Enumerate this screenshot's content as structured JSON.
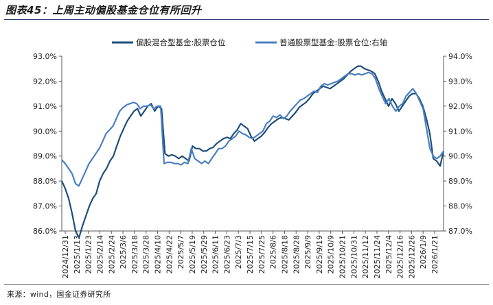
{
  "header": {
    "title": "图表45：上周主动偏股基金仓位有所回升"
  },
  "footer": {
    "source": "来源：wind，国金证券研究所"
  },
  "chart_data": {
    "type": "line",
    "left_axis": {
      "ylim": [
        86.0,
        93.0
      ],
      "ticks": [
        "86.0%",
        "87.0%",
        "88.0%",
        "89.0%",
        "90.0%",
        "91.0%",
        "92.0%",
        "93.0%"
      ]
    },
    "right_axis": {
      "ylim": [
        87.0,
        94.0
      ],
      "ticks": [
        "87.0%",
        "88.0%",
        "89.0%",
        "90.0%",
        "91.0%",
        "92.0%",
        "93.0%",
        "94.0%"
      ]
    },
    "x_ticks": [
      "2024/12/31",
      "2025/1/13",
      "2025/1/23",
      "2025/2/14",
      "2025/2/24",
      "2025/3/6",
      "2025/3/18",
      "2025/3/28",
      "2025/4/10",
      "2025/4/22",
      "2025/5/7",
      "2025/5/19",
      "2025/5/29",
      "2025/6/11",
      "2025/6/23",
      "2025/7/3",
      "2025/7/15",
      "2025/7/25",
      "2025/8/6",
      "2025/8/18",
      "2025/8/28",
      "2025/9/9",
      "2025/9/19",
      "2025/10/9",
      "2025/10/21",
      "2025/10/31",
      "2025/11/12",
      "2025/11/24",
      "2025/12/4",
      "2025/12/16",
      "2025/12/26",
      "2026/1/9",
      "2026/1/21"
    ],
    "series": [
      {
        "name": "偏股混合型基金:股票仓位",
        "axis": "left",
        "color": "#1d4e7a",
        "values": [
          88.0,
          87.7,
          87.3,
          86.7,
          86.0,
          85.6,
          86.2,
          86.6,
          87.0,
          87.3,
          87.5,
          88.0,
          88.3,
          88.5,
          88.8,
          89.0,
          89.4,
          89.8,
          90.1,
          90.4,
          90.6,
          90.8,
          90.9,
          90.6,
          90.8,
          91.0,
          91.1,
          90.8,
          91.0,
          90.9,
          89.1,
          89.0,
          89.05,
          89.0,
          88.9,
          89.0,
          88.9,
          88.8,
          89.4,
          89.3,
          89.3,
          89.2,
          89.2,
          89.3,
          89.35,
          89.5,
          89.6,
          89.7,
          89.75,
          89.7,
          89.9,
          90.05,
          90.3,
          90.2,
          90.1,
          89.8,
          89.6,
          89.7,
          89.8,
          89.95,
          90.15,
          90.3,
          90.4,
          90.5,
          90.55,
          90.5,
          90.45,
          90.6,
          90.75,
          90.95,
          91.05,
          91.15,
          91.3,
          91.5,
          91.6,
          91.7,
          91.8,
          91.75,
          91.7,
          91.8,
          91.9,
          92.0,
          92.1,
          92.25,
          92.4,
          92.5,
          92.6,
          92.6,
          92.5,
          92.45,
          92.4,
          92.3,
          92.0,
          91.6,
          91.3,
          91.0,
          91.3,
          91.1,
          90.8,
          91.0,
          91.2,
          91.4,
          91.5,
          91.5,
          91.3,
          91.0,
          90.5,
          89.9,
          88.9,
          88.8,
          88.6,
          89.2
        ]
      },
      {
        "name": "普通股票型基金:股票仓位:右轴",
        "axis": "right",
        "color": "#4a7fc1",
        "values": [
          89.85,
          89.7,
          89.5,
          89.3,
          88.9,
          88.8,
          89.1,
          89.4,
          89.7,
          89.9,
          90.1,
          90.3,
          90.6,
          90.9,
          91.05,
          91.2,
          91.5,
          91.8,
          91.95,
          92.05,
          92.1,
          92.15,
          92.1,
          91.9,
          92.0,
          92.0,
          92.05,
          91.9,
          92.0,
          92.0,
          89.7,
          89.75,
          89.75,
          89.7,
          89.7,
          89.65,
          89.75,
          89.7,
          90.3,
          89.9,
          89.8,
          89.7,
          89.8,
          89.7,
          89.9,
          90.1,
          90.3,
          90.3,
          90.4,
          90.6,
          90.7,
          90.8,
          91.0,
          90.9,
          90.85,
          90.75,
          90.7,
          90.8,
          90.9,
          91.0,
          91.3,
          91.4,
          91.6,
          91.55,
          91.65,
          91.5,
          91.6,
          91.8,
          91.95,
          92.1,
          92.25,
          92.3,
          92.4,
          92.5,
          92.6,
          92.55,
          92.8,
          92.9,
          92.85,
          92.9,
          92.95,
          93.0,
          93.1,
          93.2,
          93.3,
          93.3,
          93.25,
          93.3,
          93.25,
          93.3,
          93.35,
          93.3,
          93.1,
          92.7,
          92.4,
          92.1,
          92.3,
          92.0,
          91.8,
          92.0,
          92.1,
          92.4,
          92.55,
          92.7,
          92.5,
          92.2,
          91.9,
          91.1,
          90.3,
          90.0,
          89.9,
          90.0,
          90.2
        ]
      }
    ],
    "grid": false,
    "legend": "top"
  }
}
